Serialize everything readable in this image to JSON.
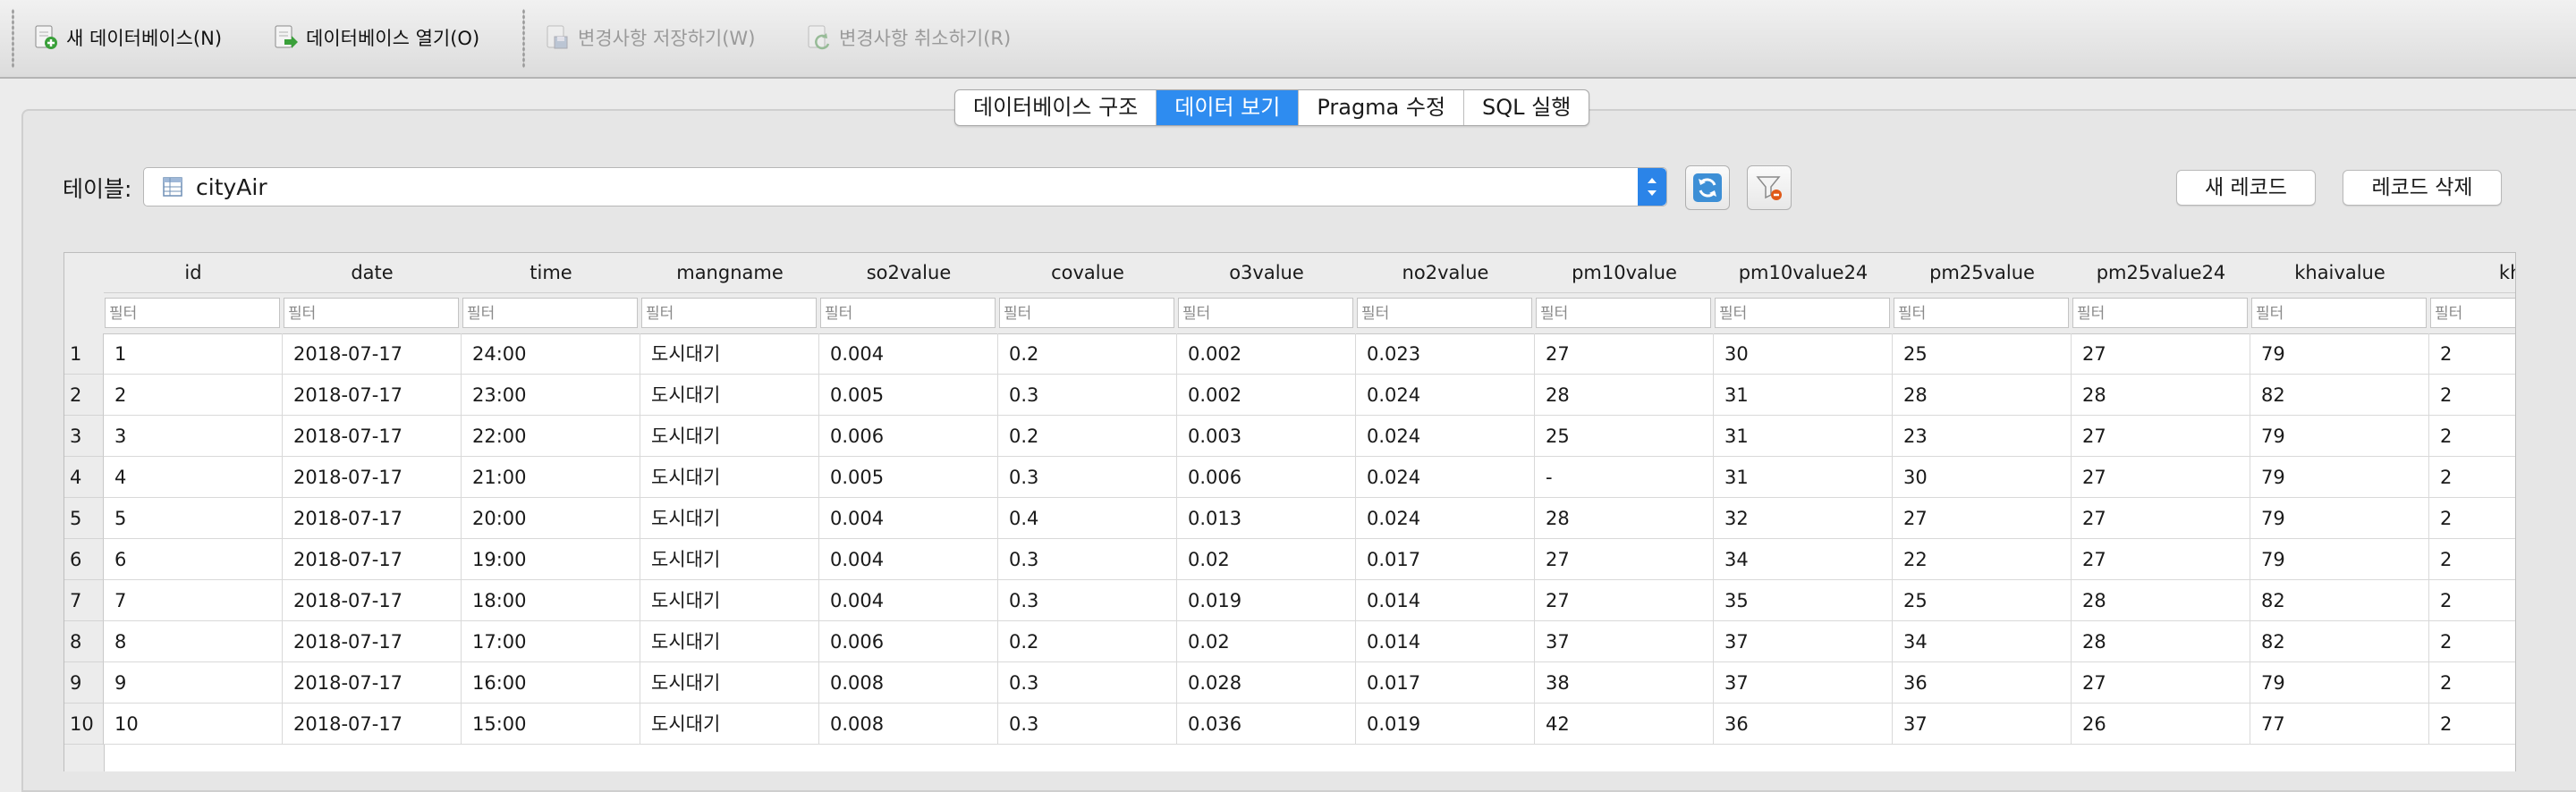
{
  "toolbar": {
    "new_db": "새 데이터베이스(N)",
    "open_db": "데이터베이스 열기(O)",
    "save_changes": "변경사항 저장하기(W)",
    "revert_changes": "변경사항 취소하기(R)"
  },
  "tabs": [
    {
      "label": "데이터베이스 구조",
      "active": false
    },
    {
      "label": "데이터 보기",
      "active": true
    },
    {
      "label": "Pragma 수정",
      "active": false
    },
    {
      "label": "SQL 실행",
      "active": false
    }
  ],
  "table_selector": {
    "label": "테이블:",
    "value": "cityAir"
  },
  "buttons": {
    "new_record": "새 레코드",
    "delete_record": "레코드 삭제"
  },
  "grid": {
    "filter_placeholder": "필터",
    "columns": [
      "id",
      "date",
      "time",
      "mangname",
      "so2value",
      "covalue",
      "o3value",
      "no2value",
      "pm10value",
      "pm10value24",
      "pm25value",
      "pm25value24",
      "khaivalue",
      "khai"
    ],
    "row_numbers": [
      "1",
      "2",
      "3",
      "4",
      "5",
      "6",
      "7",
      "8",
      "9",
      "10"
    ],
    "rows": [
      [
        "1",
        "2018-07-17",
        "24:00",
        "도시대기",
        "0.004",
        "0.2",
        "0.002",
        "0.023",
        "27",
        "30",
        "25",
        "27",
        "79",
        "2"
      ],
      [
        "2",
        "2018-07-17",
        "23:00",
        "도시대기",
        "0.005",
        "0.3",
        "0.002",
        "0.024",
        "28",
        "31",
        "28",
        "28",
        "82",
        "2"
      ],
      [
        "3",
        "2018-07-17",
        "22:00",
        "도시대기",
        "0.006",
        "0.2",
        "0.003",
        "0.024",
        "25",
        "31",
        "23",
        "27",
        "79",
        "2"
      ],
      [
        "4",
        "2018-07-17",
        "21:00",
        "도시대기",
        "0.005",
        "0.3",
        "0.006",
        "0.024",
        "-",
        "31",
        "30",
        "27",
        "79",
        "2"
      ],
      [
        "5",
        "2018-07-17",
        "20:00",
        "도시대기",
        "0.004",
        "0.4",
        "0.013",
        "0.024",
        "28",
        "32",
        "27",
        "27",
        "79",
        "2"
      ],
      [
        "6",
        "2018-07-17",
        "19:00",
        "도시대기",
        "0.004",
        "0.3",
        "0.02",
        "0.017",
        "27",
        "34",
        "22",
        "27",
        "79",
        "2"
      ],
      [
        "7",
        "2018-07-17",
        "18:00",
        "도시대기",
        "0.004",
        "0.3",
        "0.019",
        "0.014",
        "27",
        "35",
        "25",
        "28",
        "82",
        "2"
      ],
      [
        "8",
        "2018-07-17",
        "17:00",
        "도시대기",
        "0.006",
        "0.2",
        "0.02",
        "0.014",
        "37",
        "37",
        "34",
        "28",
        "82",
        "2"
      ],
      [
        "9",
        "2018-07-17",
        "16:00",
        "도시대기",
        "0.008",
        "0.3",
        "0.028",
        "0.017",
        "38",
        "37",
        "36",
        "27",
        "79",
        "2"
      ],
      [
        "10",
        "2018-07-17",
        "15:00",
        "도시대기",
        "0.008",
        "0.3",
        "0.036",
        "0.019",
        "42",
        "36",
        "37",
        "26",
        "77",
        "2"
      ]
    ]
  },
  "colors": {
    "accent": "#2e8cf0",
    "header_bg": "#ececec"
  }
}
